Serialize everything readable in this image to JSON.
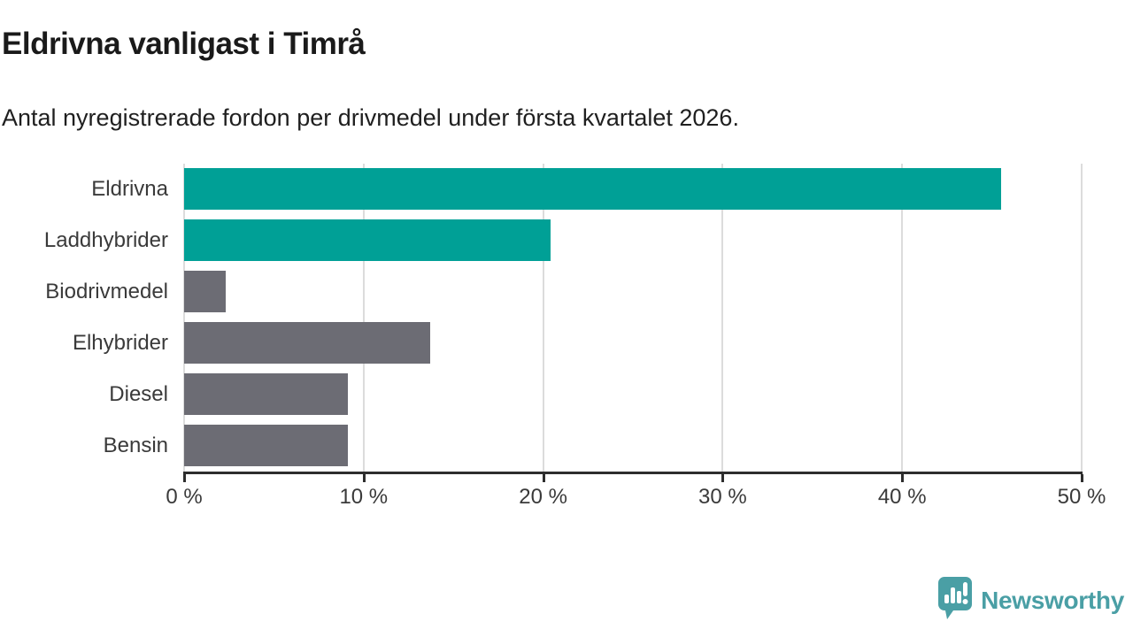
{
  "header": {
    "title": "Eldrivna vanligast i Timrå",
    "subtitle": "Antal nyregistrerade fordon per drivmedel under första kvartalet 2026."
  },
  "chart_data": {
    "type": "bar",
    "orientation": "horizontal",
    "title": "Eldrivna vanligast i Timrå",
    "subtitle": "Antal nyregistrerade fordon per drivmedel under första kvartalet 2026.",
    "categories": [
      "Eldrivna",
      "Laddhybrider",
      "Biodrivmedel",
      "Elhybrider",
      "Diesel",
      "Bensin"
    ],
    "values": [
      45.5,
      20.4,
      2.3,
      13.7,
      9.1,
      9.1
    ],
    "unit": "%",
    "xlim": [
      0,
      50
    ],
    "x_tick_values": [
      0,
      10,
      20,
      30,
      40,
      50
    ],
    "x_tick_labels": [
      "0 %",
      "10 %",
      "20 %",
      "30 %",
      "40 %",
      "50 %"
    ],
    "grid": "vertical",
    "legend": "none",
    "bar_colors": [
      "#00a096",
      "#00a096",
      "#6c6c74",
      "#6c6c74",
      "#6c6c74",
      "#6c6c74"
    ],
    "highlight_color": "#00a096",
    "default_color": "#6c6c74",
    "gridline_color": "#dcdcdc",
    "axis_color": "#2d2d2d"
  },
  "footer": {
    "brand": "Newsworthy",
    "logo_color": "#4a9fa5",
    "logo_icon": "bar-chart-speech-bubble-icon"
  }
}
